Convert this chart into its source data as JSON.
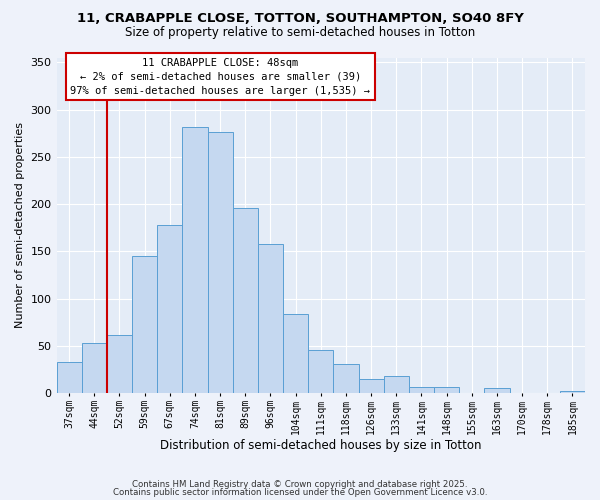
{
  "title": "11, CRABAPPLE CLOSE, TOTTON, SOUTHAMPTON, SO40 8FY",
  "subtitle": "Size of property relative to semi-detached houses in Totton",
  "xlabel": "Distribution of semi-detached houses by size in Totton",
  "ylabel": "Number of semi-detached properties",
  "bar_labels": [
    "37sqm",
    "44sqm",
    "52sqm",
    "59sqm",
    "67sqm",
    "74sqm",
    "81sqm",
    "89sqm",
    "96sqm",
    "104sqm",
    "111sqm",
    "118sqm",
    "126sqm",
    "133sqm",
    "141sqm",
    "148sqm",
    "155sqm",
    "163sqm",
    "170sqm",
    "178sqm",
    "185sqm"
  ],
  "bar_heights": [
    33,
    53,
    62,
    145,
    178,
    282,
    276,
    196,
    158,
    84,
    46,
    31,
    15,
    18,
    7,
    6,
    0,
    5,
    0,
    0,
    2
  ],
  "bar_color": "#c5d8f0",
  "bar_edge_color": "#5a9fd4",
  "vline_color": "#cc0000",
  "annotation_title": "11 CRABAPPLE CLOSE: 48sqm",
  "annotation_line1": "← 2% of semi-detached houses are smaller (39)",
  "annotation_line2": "97% of semi-detached houses are larger (1,535) →",
  "annotation_box_edge": "#cc0000",
  "ylim": [
    0,
    355
  ],
  "yticks": [
    0,
    50,
    100,
    150,
    200,
    250,
    300,
    350
  ],
  "footer1": "Contains HM Land Registry data © Crown copyright and database right 2025.",
  "footer2": "Contains public sector information licensed under the Open Government Licence v3.0.",
  "bg_color": "#eef2fa",
  "plot_bg_color": "#e4ecf7"
}
